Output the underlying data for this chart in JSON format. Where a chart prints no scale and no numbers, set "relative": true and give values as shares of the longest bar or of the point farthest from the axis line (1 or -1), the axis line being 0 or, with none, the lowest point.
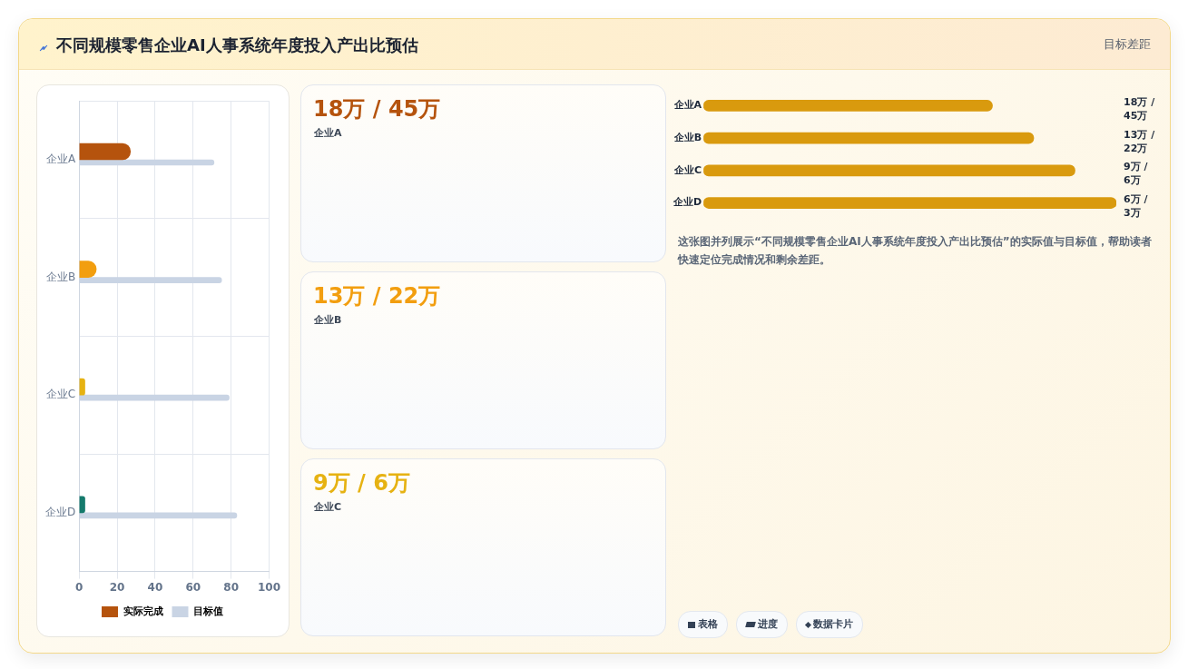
{
  "chart_data": [
    {
      "type": "bar",
      "orientation": "horizontal",
      "title": "不同规模零售企业AI人事系统年度投入产出比预估",
      "annotations": [
        "目标差距"
      ],
      "categories": [
        "企业A",
        "企业B",
        "企业C",
        "企业D"
      ],
      "series": [
        {
          "name": "实际完成",
          "colors": [
            "#b5530d",
            "#f29e0f",
            "#e6b212",
            "#157a6c"
          ],
          "values": [
            27,
            9,
            3,
            3
          ]
        },
        {
          "name": "目标值",
          "color": "#c9d4e4",
          "values": [
            71,
            75,
            79,
            83
          ]
        }
      ],
      "xlim": [
        0,
        100
      ],
      "xticks": [
        0,
        20,
        40,
        60,
        80,
        100
      ],
      "grid": true,
      "legend": "bottom"
    },
    {
      "type": "other",
      "annotations": [
        "18万 / 45万",
        "企业A",
        "13万 / 22万",
        "企业B",
        "9万 / 6万",
        "企业C"
      ],
      "colors": [
        "#b5530d",
        "#f29e0f",
        "#e6b212"
      ]
    },
    {
      "type": "bar",
      "orientation": "horizontal",
      "relative": true,
      "categories": [
        "企业A",
        "企业B",
        "企业C",
        "企业D"
      ],
      "values": [
        0.7,
        0.8,
        0.9,
        1
      ],
      "color": "#d99a0e",
      "annotations": [
        "18万 / 45万",
        "13万 / 22万",
        "9万 / 6万",
        "6万 / 3万",
        "这张图并列展示“不同规模零售企业AI人事系统年度投入产出比预估”的实际值与目标值，帮助读者快速定位完成情况和剩余差距。",
        "表格",
        "进度",
        "数据卡片"
      ]
    }
  ]
}
